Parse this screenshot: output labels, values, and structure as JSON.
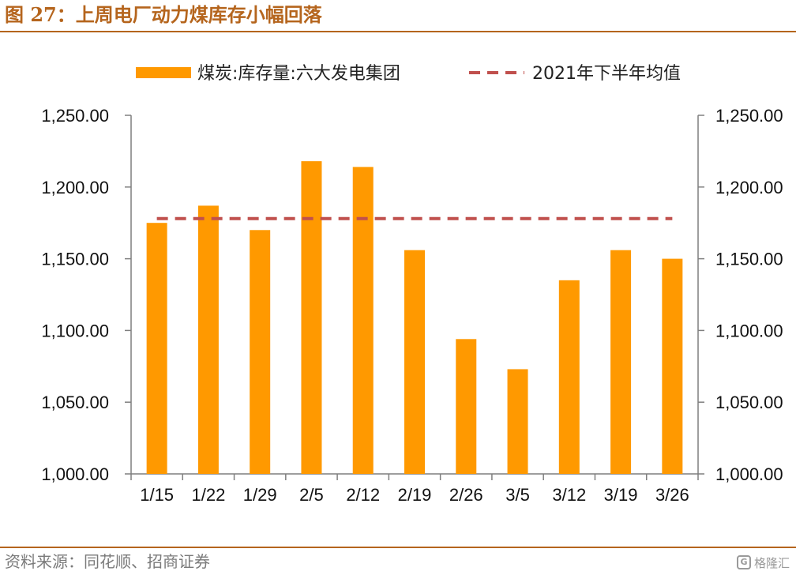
{
  "title": "图 27：上周电厂动力煤库存小幅回落",
  "source": "资料来源：同花顺、招商证券",
  "watermark": {
    "logo_icon": "gelonghui-logo-icon",
    "logo_glyph": "G",
    "text": "格隆汇"
  },
  "colors": {
    "bar": "#FF9900",
    "avg_line": "#C0504D",
    "title": "#B5651D",
    "axis": "#7F7F7F"
  },
  "chart_data": {
    "type": "bar",
    "title": "",
    "xlabel": "",
    "ylabel": "",
    "categories": [
      "1/15",
      "1/22",
      "1/29",
      "2/5",
      "2/12",
      "2/19",
      "2/26",
      "3/5",
      "3/12",
      "3/19",
      "3/26"
    ],
    "series": [
      {
        "name": "煤炭:库存量:六大发电集团",
        "type": "bar",
        "values": [
          1175,
          1187,
          1170,
          1218,
          1214,
          1156,
          1094,
          1073,
          1135,
          1156,
          1150
        ]
      },
      {
        "name": "2021年下半年均值",
        "type": "line",
        "style": "dashed",
        "values": [
          1178,
          1178,
          1178,
          1178,
          1178,
          1178,
          1178,
          1178,
          1178,
          1178,
          1178
        ]
      }
    ],
    "ylim": [
      1000,
      1250
    ],
    "yticks": [
      "1,000.00",
      "1,050.00",
      "1,100.00",
      "1,150.00",
      "1,200.00",
      "1,250.00"
    ],
    "secondary_ylim": [
      1000,
      1250
    ],
    "secondary_yticks": [
      "1,000.00",
      "1,050.00",
      "1,100.00",
      "1,150.00",
      "1,200.00",
      "1,250.00"
    ],
    "grid": false,
    "legend_position": "top"
  }
}
